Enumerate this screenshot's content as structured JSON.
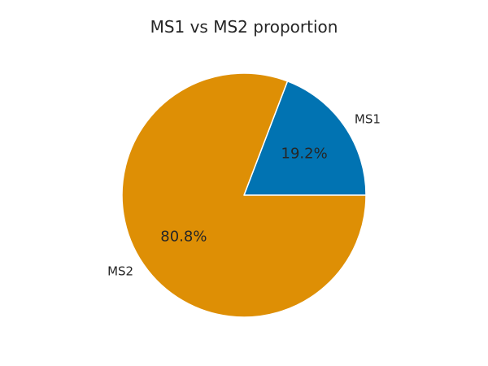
{
  "chart_data": {
    "type": "pie",
    "title": "MS1 vs MS2 proportion",
    "categories": [
      "MS1",
      "MS2"
    ],
    "values": [
      19.2,
      80.8
    ],
    "percent_labels": [
      "19.2%",
      "80.8%"
    ],
    "colors": [
      "#0173b2",
      "#de8f05"
    ],
    "start_angle_deg": 0,
    "direction": "counterclockwise",
    "edge_color": "#ffffff"
  }
}
